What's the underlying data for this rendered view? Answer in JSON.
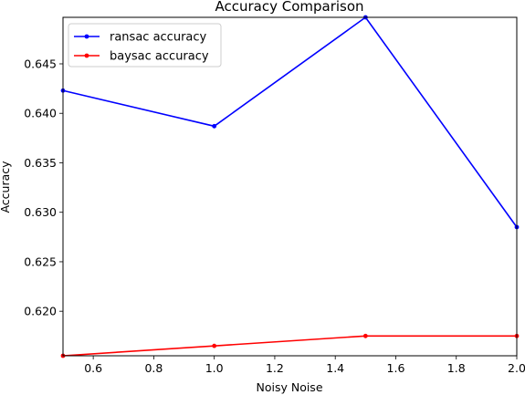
{
  "chart_data": {
    "type": "line",
    "title": "Accuracy Comparison",
    "xlabel": "Noisy Noise",
    "ylabel": "Accuracy",
    "xlim": [
      0.5,
      2.0
    ],
    "ylim": [
      0.6155,
      0.6497
    ],
    "x": [
      0.5,
      1.0,
      1.5,
      2.0
    ],
    "xticks": [
      "0.6",
      "0.8",
      "1.0",
      "1.2",
      "1.4",
      "1.6",
      "1.8",
      "2.0"
    ],
    "yticks": [
      "0.620",
      "0.625",
      "0.630",
      "0.635",
      "0.640",
      "0.645"
    ],
    "grid": false,
    "legend_position": "top-left",
    "series": [
      {
        "name": "ransac accuracy",
        "color": "#0000ff",
        "values": [
          0.6423,
          0.6387,
          0.6497,
          0.6285
        ]
      },
      {
        "name": "baysac accuracy",
        "color": "#ff0000",
        "values": [
          0.6155,
          0.6165,
          0.6175,
          0.6175
        ]
      }
    ]
  }
}
